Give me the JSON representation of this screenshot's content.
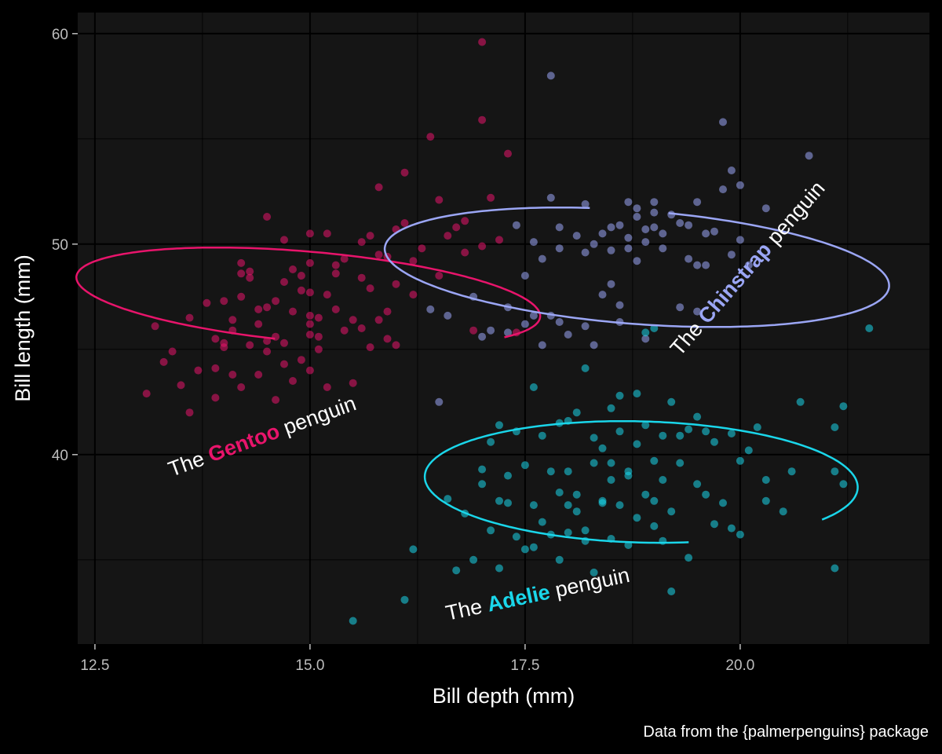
{
  "chart_data": {
    "type": "scatter",
    "xlabel": "Bill depth (mm)",
    "ylabel": "Bill length (mm)",
    "caption": "Data from the {palmerpenguins} package",
    "xlim": [
      12.3,
      22.2
    ],
    "ylim": [
      31.0,
      61.0
    ],
    "x_ticks": [
      12.5,
      15.0,
      17.5,
      20.0
    ],
    "x_tick_labels": [
      "12.5",
      "15.0",
      "17.5",
      "20.0"
    ],
    "y_ticks": [
      40,
      50,
      60
    ],
    "y_tick_labels": [
      "40",
      "50",
      "60"
    ],
    "x_minor_ticks": [
      13.75,
      16.25,
      18.75,
      21.25
    ],
    "y_minor_ticks": [
      35,
      45,
      55
    ],
    "grid": true,
    "legend": "none",
    "colors": {
      "background": "#000000",
      "panel": "#151515",
      "grid": "#000000",
      "gentoo": "#e8146b",
      "chinstrap": "#9ba6f5",
      "adelie": "#1ad6ea"
    },
    "series": [
      {
        "key": "gentoo",
        "color": "#e8146b",
        "values": [
          [
            13.1,
            42.9
          ],
          [
            13.2,
            46.1
          ],
          [
            13.4,
            44.9
          ],
          [
            13.5,
            43.3
          ],
          [
            13.6,
            46.5
          ],
          [
            13.6,
            42.0
          ],
          [
            13.7,
            44.0
          ],
          [
            13.8,
            47.2
          ],
          [
            13.9,
            45.5
          ],
          [
            13.9,
            42.7
          ],
          [
            14.0,
            45.3
          ],
          [
            14.0,
            45.1
          ],
          [
            14.0,
            47.3
          ],
          [
            14.1,
            43.8
          ],
          [
            14.1,
            45.9
          ],
          [
            14.2,
            47.5
          ],
          [
            14.2,
            43.2
          ],
          [
            14.3,
            48.7
          ],
          [
            14.3,
            48.4
          ],
          [
            14.4,
            46.2
          ],
          [
            14.4,
            43.8
          ],
          [
            14.5,
            45.4
          ],
          [
            14.5,
            47.0
          ],
          [
            14.5,
            51.3
          ],
          [
            14.5,
            44.9
          ],
          [
            14.6,
            45.6
          ],
          [
            14.6,
            42.6
          ],
          [
            14.7,
            48.2
          ],
          [
            14.7,
            45.3
          ],
          [
            14.7,
            50.2
          ],
          [
            14.8,
            46.8
          ],
          [
            14.8,
            43.5
          ],
          [
            14.9,
            48.5
          ],
          [
            14.9,
            44.5
          ],
          [
            15.0,
            46.2
          ],
          [
            15.0,
            45.7
          ],
          [
            15.0,
            47.7
          ],
          [
            15.0,
            49.1
          ],
          [
            15.0,
            46.6
          ],
          [
            15.0,
            44.0
          ],
          [
            15.1,
            45.0
          ],
          [
            15.1,
            46.5
          ],
          [
            15.2,
            47.6
          ],
          [
            15.2,
            43.2
          ],
          [
            15.3,
            49.0
          ],
          [
            15.3,
            46.9
          ],
          [
            15.4,
            45.9
          ],
          [
            15.5,
            46.4
          ],
          [
            15.6,
            48.4
          ],
          [
            15.7,
            45.1
          ],
          [
            15.7,
            50.4
          ],
          [
            15.8,
            46.4
          ],
          [
            15.8,
            49.5
          ],
          [
            15.9,
            45.5
          ],
          [
            16.0,
            48.1
          ],
          [
            16.0,
            50.7
          ],
          [
            16.1,
            53.4
          ],
          [
            16.2,
            47.6
          ],
          [
            16.3,
            49.8
          ],
          [
            16.4,
            55.1
          ],
          [
            16.6,
            50.4
          ],
          [
            16.8,
            49.6
          ],
          [
            17.0,
            55.9
          ],
          [
            17.0,
            49.9
          ],
          [
            17.1,
            52.2
          ],
          [
            17.2,
            50.2
          ],
          [
            17.3,
            54.3
          ],
          [
            17.4,
            45.8
          ],
          [
            15.6,
            50.1
          ],
          [
            14.2,
            49.1
          ],
          [
            15.5,
            43.4
          ],
          [
            16.5,
            52.1
          ],
          [
            14.8,
            48.8
          ],
          [
            15.2,
            50.5
          ],
          [
            16.8,
            51.1
          ],
          [
            15.9,
            46.8
          ],
          [
            14.3,
            45.2
          ],
          [
            15.7,
            47.9
          ],
          [
            14.1,
            46.4
          ],
          [
            15.0,
            50.5
          ],
          [
            16.2,
            49.2
          ],
          [
            14.6,
            47.3
          ],
          [
            16.5,
            48.5
          ],
          [
            15.1,
            45.6
          ],
          [
            14.4,
            46.9
          ],
          [
            15.4,
            49.3
          ],
          [
            15.9,
            49.4
          ],
          [
            16.1,
            51.0
          ],
          [
            15.8,
            52.7
          ],
          [
            14.9,
            47.8
          ],
          [
            16.7,
            50.8
          ],
          [
            17.0,
            59.6
          ],
          [
            13.3,
            44.4
          ],
          [
            14.7,
            44.3
          ],
          [
            15.6,
            46.0
          ],
          [
            13.9,
            44.1
          ],
          [
            16.0,
            45.2
          ],
          [
            14.2,
            48.6
          ],
          [
            16.9,
            45.9
          ],
          [
            15.3,
            48.6
          ]
        ]
      },
      {
        "key": "chinstrap",
        "color": "#9ba6f5",
        "values": [
          [
            16.4,
            46.9
          ],
          [
            16.5,
            42.5
          ],
          [
            16.6,
            46.6
          ],
          [
            16.9,
            47.5
          ],
          [
            17.0,
            45.6
          ],
          [
            17.1,
            45.9
          ],
          [
            17.3,
            45.8
          ],
          [
            17.3,
            47.0
          ],
          [
            17.4,
            50.9
          ],
          [
            17.5,
            46.2
          ],
          [
            17.5,
            48.5
          ],
          [
            17.6,
            46.6
          ],
          [
            17.7,
            45.2
          ],
          [
            17.8,
            58.0
          ],
          [
            17.8,
            46.6
          ],
          [
            17.9,
            50.8
          ],
          [
            18.0,
            45.7
          ],
          [
            18.2,
            49.6
          ],
          [
            18.2,
            46.1
          ],
          [
            18.3,
            50.0
          ],
          [
            18.4,
            50.5
          ],
          [
            18.5,
            49.7
          ],
          [
            18.5,
            50.8
          ],
          [
            18.6,
            46.3
          ],
          [
            18.7,
            52.0
          ],
          [
            18.7,
            50.3
          ],
          [
            18.8,
            51.3
          ],
          [
            18.8,
            49.2
          ],
          [
            18.9,
            45.5
          ],
          [
            18.9,
            50.7
          ],
          [
            19.0,
            51.5
          ],
          [
            19.0,
            52.0
          ],
          [
            19.1,
            50.5
          ],
          [
            19.2,
            51.4
          ],
          [
            19.3,
            47.0
          ],
          [
            19.4,
            50.9
          ],
          [
            19.5,
            49.0
          ],
          [
            19.5,
            46.8
          ],
          [
            19.6,
            50.5
          ],
          [
            19.7,
            50.6
          ],
          [
            19.8,
            52.6
          ],
          [
            19.8,
            55.8
          ],
          [
            19.9,
            53.5
          ],
          [
            19.9,
            49.5
          ],
          [
            20.0,
            50.2
          ],
          [
            20.0,
            52.8
          ],
          [
            20.3,
            51.7
          ],
          [
            20.8,
            54.2
          ],
          [
            19.4,
            49.3
          ],
          [
            18.8,
            51.7
          ],
          [
            18.4,
            47.6
          ],
          [
            18.9,
            50.1
          ],
          [
            19.1,
            49.8
          ],
          [
            17.9,
            46.3
          ],
          [
            18.1,
            50.4
          ],
          [
            17.7,
            49.3
          ],
          [
            18.6,
            50.9
          ],
          [
            19.6,
            49.0
          ],
          [
            18.7,
            49.8
          ],
          [
            18.3,
            45.2
          ],
          [
            17.6,
            50.1
          ],
          [
            19.5,
            52.0
          ],
          [
            20.1,
            49.0
          ],
          [
            18.6,
            47.1
          ],
          [
            17.8,
            52.2
          ],
          [
            19.0,
            50.8
          ],
          [
            18.2,
            51.9
          ],
          [
            17.9,
            49.8
          ],
          [
            19.3,
            51.0
          ],
          [
            18.5,
            48.1
          ]
        ]
      },
      {
        "key": "adelie",
        "color": "#1ad6ea",
        "values": [
          [
            15.5,
            32.1
          ],
          [
            16.1,
            33.1
          ],
          [
            16.2,
            35.5
          ],
          [
            16.6,
            37.9
          ],
          [
            16.7,
            34.5
          ],
          [
            16.9,
            35.0
          ],
          [
            17.0,
            38.6
          ],
          [
            17.1,
            36.4
          ],
          [
            17.1,
            40.6
          ],
          [
            17.2,
            34.6
          ],
          [
            17.2,
            37.8
          ],
          [
            17.3,
            39.0
          ],
          [
            17.4,
            36.1
          ],
          [
            17.5,
            35.5
          ],
          [
            17.5,
            39.5
          ],
          [
            17.6,
            37.6
          ],
          [
            17.7,
            40.9
          ],
          [
            17.8,
            36.2
          ],
          [
            17.8,
            39.2
          ],
          [
            17.9,
            35.0
          ],
          [
            17.9,
            41.5
          ],
          [
            18.0,
            37.6
          ],
          [
            18.0,
            39.2
          ],
          [
            18.0,
            36.3
          ],
          [
            18.1,
            42.0
          ],
          [
            18.1,
            38.1
          ],
          [
            18.2,
            36.4
          ],
          [
            18.3,
            34.4
          ],
          [
            18.3,
            39.6
          ],
          [
            18.4,
            40.3
          ],
          [
            18.4,
            37.7
          ],
          [
            18.5,
            42.2
          ],
          [
            18.5,
            38.8
          ],
          [
            18.5,
            36.0
          ],
          [
            18.6,
            41.1
          ],
          [
            18.6,
            37.6
          ],
          [
            18.7,
            39.0
          ],
          [
            18.7,
            35.7
          ],
          [
            18.8,
            40.5
          ],
          [
            18.8,
            37.0
          ],
          [
            18.9,
            41.4
          ],
          [
            18.9,
            38.1
          ],
          [
            19.0,
            39.7
          ],
          [
            19.0,
            36.6
          ],
          [
            19.1,
            40.9
          ],
          [
            19.1,
            38.8
          ],
          [
            19.2,
            42.5
          ],
          [
            19.2,
            37.3
          ],
          [
            19.3,
            39.6
          ],
          [
            19.4,
            35.1
          ],
          [
            19.5,
            41.8
          ],
          [
            19.6,
            38.1
          ],
          [
            19.7,
            40.6
          ],
          [
            19.8,
            37.7
          ],
          [
            19.9,
            36.5
          ],
          [
            20.0,
            39.7
          ],
          [
            20.1,
            40.2
          ],
          [
            20.2,
            41.3
          ],
          [
            20.3,
            38.8
          ],
          [
            20.5,
            37.3
          ],
          [
            20.6,
            39.2
          ],
          [
            20.7,
            42.5
          ],
          [
            21.1,
            41.3
          ],
          [
            21.1,
            39.2
          ],
          [
            21.2,
            42.3
          ],
          [
            21.2,
            38.6
          ],
          [
            21.5,
            46.0
          ],
          [
            19.0,
            46.0
          ],
          [
            18.2,
            44.1
          ],
          [
            19.9,
            41.0
          ],
          [
            17.6,
            43.2
          ],
          [
            18.9,
            45.8
          ],
          [
            21.1,
            34.6
          ],
          [
            17.0,
            39.3
          ],
          [
            18.4,
            37.8
          ],
          [
            19.4,
            41.2
          ],
          [
            18.7,
            39.2
          ],
          [
            17.9,
            38.2
          ],
          [
            19.3,
            40.9
          ],
          [
            18.2,
            35.9
          ],
          [
            17.4,
            41.1
          ],
          [
            19.7,
            36.7
          ],
          [
            18.6,
            42.8
          ],
          [
            19.1,
            35.9
          ],
          [
            17.3,
            37.7
          ],
          [
            18.0,
            41.6
          ],
          [
            20.0,
            36.2
          ],
          [
            19.5,
            38.6
          ],
          [
            18.3,
            40.8
          ],
          [
            17.6,
            35.6
          ],
          [
            18.8,
            42.9
          ],
          [
            16.8,
            37.2
          ],
          [
            20.3,
            37.8
          ],
          [
            19.2,
            33.5
          ],
          [
            18.1,
            37.3
          ],
          [
            17.7,
            36.8
          ],
          [
            19.6,
            41.1
          ],
          [
            18.5,
            39.6
          ],
          [
            17.2,
            41.4
          ],
          [
            19.0,
            37.8
          ]
        ]
      }
    ],
    "ellipses": [
      {
        "key": "gentoo",
        "color": "#e8146b",
        "center": [
          14.98,
          47.5
        ],
        "a": 1.93,
        "b": 3.0,
        "angle_deg": 55,
        "gap_start": 196,
        "gap_end": 262
      },
      {
        "key": "chinstrap",
        "color": "#9ba6f5",
        "center": [
          18.8,
          48.9
        ],
        "a": 2.4,
        "b": 3.3,
        "angle_deg": 48,
        "gap_start": 26,
        "gap_end": 44
      },
      {
        "key": "adelie",
        "color": "#1ad6ea",
        "center": [
          18.85,
          38.7
        ],
        "a": 2.48,
        "b": 2.92,
        "angle_deg": 16,
        "gap_start": 264,
        "gap_end": 308
      }
    ],
    "annotations": [
      {
        "key": "gentoo",
        "pre": "The ",
        "strong": "Gentoo",
        "post": " penguin",
        "color": "#e8146b",
        "anchor": [
          14.45,
          40.8
        ],
        "rotate_deg": -20
      },
      {
        "key": "chinstrap",
        "pre": "The ",
        "strong": "Chinstrap",
        "post": " penguin",
        "color": "#9ba6f5",
        "anchor": [
          20.1,
          48.8
        ],
        "rotate_deg": -49
      },
      {
        "key": "adelie",
        "pre": "The ",
        "strong": "Adelie",
        "post": " penguin",
        "color": "#1ad6ea",
        "anchor": [
          17.65,
          33.3
        ],
        "rotate_deg": -12
      }
    ]
  }
}
